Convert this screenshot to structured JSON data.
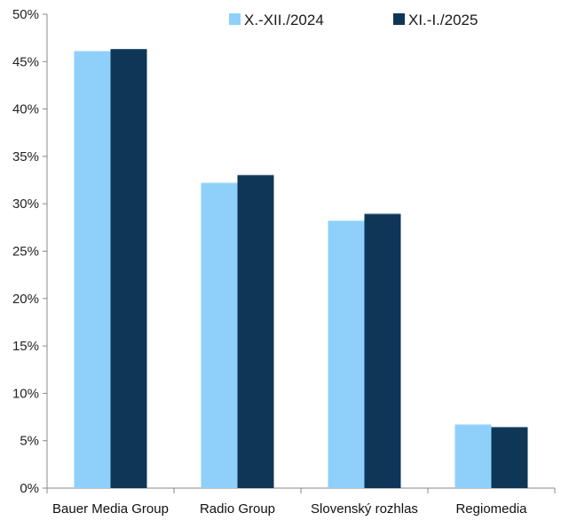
{
  "chart_data": {
    "type": "bar",
    "categories": [
      "Bauer Media Group",
      "Radio Group",
      "Slovenský rozhlas",
      "Regiomedia"
    ],
    "series": [
      {
        "name": "X.-XII./2024",
        "values": [
          46.1,
          32.2,
          28.2,
          6.7
        ],
        "color": "#8fd0fb"
      },
      {
        "name": "XI.-I./2025",
        "values": [
          46.3,
          33.0,
          28.9,
          6.4
        ],
        "color": "#0e3656"
      }
    ],
    "ylim": [
      0,
      50
    ],
    "yticks": [
      0,
      5,
      10,
      15,
      20,
      25,
      30,
      35,
      40,
      45,
      50
    ],
    "ytick_labels": [
      "0%",
      "5%",
      "10%",
      "15%",
      "20%",
      "25%",
      "30%",
      "35%",
      "40%",
      "45%",
      "50%"
    ],
    "legend_position": "top-right",
    "grid": false,
    "title": "",
    "xlabel": "",
    "ylabel": ""
  }
}
